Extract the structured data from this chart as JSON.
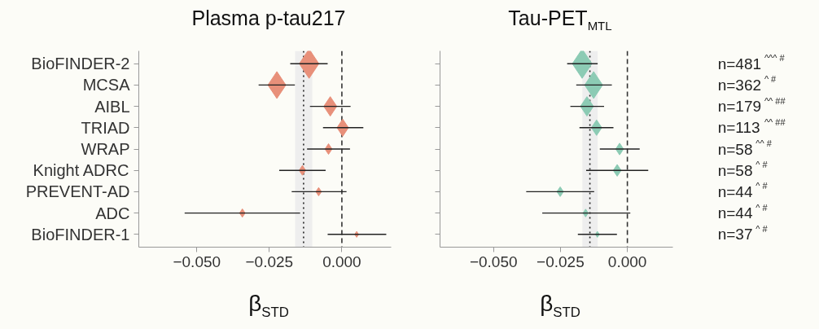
{
  "chart_data": [
    {
      "type": "bubble",
      "title": "Plasma p-tau217",
      "xlabel": "β$_{STD}$",
      "marker": "diamond",
      "grid": false,
      "categories": [
        "BioFINDER-2",
        "MCSA",
        "AIBL",
        "TRIAD",
        "WRAP",
        "Knight ADRC",
        "PREVENT-AD",
        "ADC",
        "BioFINDER-1"
      ],
      "series": [
        {
          "color": "#e8907a",
          "values": [
            -0.0113,
            -0.0224,
            -0.004,
            0.0003,
            -0.0046,
            -0.0136,
            -0.008,
            -0.0343,
            0.0051
          ],
          "sizes": [
            1,
            0.84,
            0.44,
            0.34,
            0.13,
            0.11,
            0.08,
            0.08,
            0.04
          ],
          "errors": [
            [
              -0.0178,
              -0.0049
            ],
            [
              -0.0287,
              -0.0162
            ],
            [
              -0.011,
              0.003
            ],
            [
              -0.0065,
              0.0074
            ],
            [
              -0.012,
              0.0028
            ],
            [
              -0.0216,
              -0.0056
            ],
            [
              -0.0173,
              0.0016
            ],
            [
              -0.0542,
              -0.0144
            ],
            [
              -0.0049,
              0.0153
            ]
          ]
        }
      ],
      "orientation": "horizontal",
      "xlim": [
        -0.07,
        0.017
      ],
      "xticks": [
        {
          "value": -0.05,
          "label": "−0.050"
        },
        {
          "value": -0.025,
          "label": "−0.025"
        },
        {
          "value": 0,
          "label": "0.000"
        }
      ],
      "ref_lines": [
        {
          "axis": "x",
          "value": 0,
          "line_style": "dashed",
          "color": "#333333"
        },
        {
          "axis": "x",
          "value": -0.0132,
          "line_style": "dotted",
          "color": "#222222"
        }
      ],
      "bands": [
        {
          "axis": "x",
          "from": -0.0161,
          "to": -0.0102,
          "color": "#eeeeee"
        }
      ]
    },
    {
      "type": "bubble",
      "title": "Tau-PET$_{MTL}$",
      "xlabel": "β$_{STD}$",
      "marker": "diamond",
      "grid": false,
      "tick_labels": "x",
      "categories": [
        null,
        null,
        null,
        null,
        null,
        null,
        null,
        null,
        null
      ],
      "series": [
        {
          "color": "#8ccbb4",
          "values": [
            -0.0169,
            -0.0126,
            -0.0151,
            -0.0115,
            -0.0029,
            -0.0038,
            -0.0251,
            -0.0156,
            -0.0112
          ],
          "sizes": [
            1,
            0.84,
            0.44,
            0.28,
            0.16,
            0.16,
            0.11,
            0.07,
            0.04
          ],
          "errors": [
            [
              -0.0225,
              -0.0111
            ],
            [
              -0.0191,
              -0.0058
            ],
            [
              -0.0213,
              -0.0087
            ],
            [
              -0.0179,
              -0.0052
            ],
            [
              -0.0103,
              0.0046
            ],
            [
              -0.0154,
              0.0078
            ],
            [
              -0.0378,
              -0.0124
            ],
            [
              -0.0318,
              0.0011
            ],
            [
              -0.0185,
              -0.0039
            ]
          ]
        }
      ],
      "orientation": "horizontal",
      "xlim": [
        -0.07,
        0.017
      ],
      "xticks": [
        {
          "value": -0.05,
          "label": "−0.050"
        },
        {
          "value": -0.025,
          "label": "−0.025"
        },
        {
          "value": 0,
          "label": "0.000"
        }
      ],
      "ref_lines": [
        {
          "axis": "x",
          "value": 0,
          "line_style": "dashed",
          "color": "#333333"
        },
        {
          "axis": "x",
          "value": -0.014,
          "line_style": "dotted",
          "color": "#222222"
        }
      ],
      "bands": [
        {
          "axis": "x",
          "from": -0.0168,
          "to": -0.0111,
          "color": "#eeeeee"
        }
      ],
      "annotations": [
        "n=481 $^{^^^ #}$",
        "n=362 $^{^ #}$",
        "n=179 $^{^^ ##}$",
        "n=113 $^{^^ ##}$",
        "n=58 $^{^^ #}$",
        "n=58 $^{^ #}$",
        "n=44 $^{^ #}$",
        "n=44 $^{^ #}$",
        "n=37 $^{^ #}$"
      ]
    }
  ]
}
